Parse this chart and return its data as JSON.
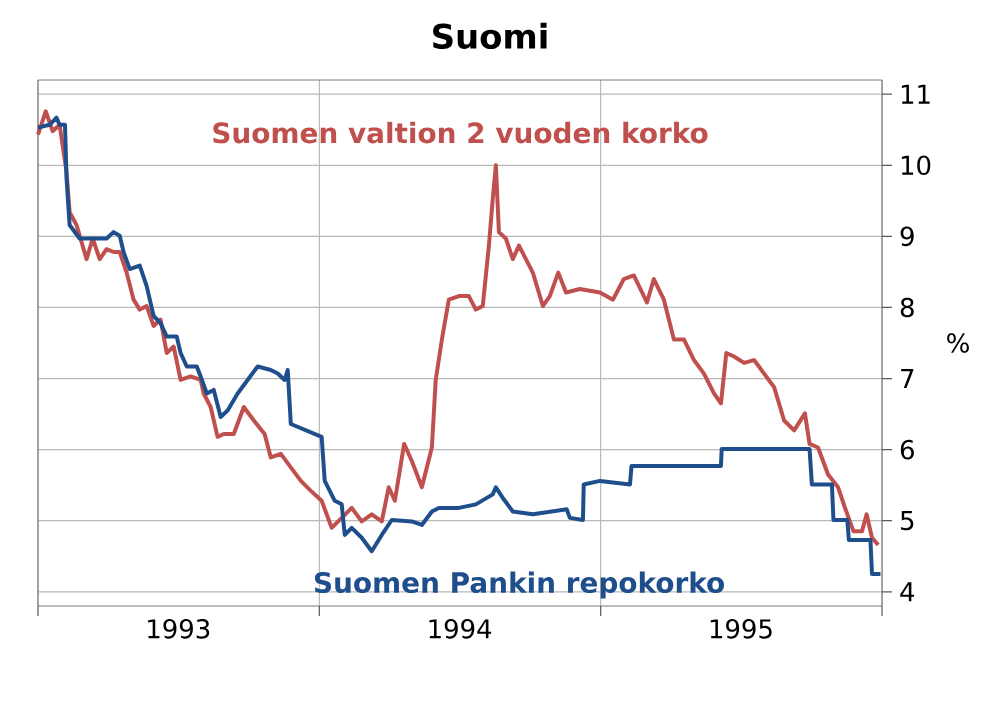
{
  "chart_data": {
    "type": "line",
    "title": "Suomi",
    "ylabel": "%",
    "xlim": [
      "1993-01-01",
      "1996-01-01"
    ],
    "ylim": [
      3.8,
      11.2
    ],
    "yticks": [
      4,
      5,
      6,
      7,
      8,
      9,
      10,
      11
    ],
    "xticks": [
      {
        "value": "1993-01-01",
        "label": null
      },
      {
        "value": "1993-07-02",
        "label": "1993"
      },
      {
        "value": "1994-01-01",
        "label": null
      },
      {
        "value": "1994-07-02",
        "label": "1994"
      },
      {
        "value": "1995-01-01",
        "label": null
      },
      {
        "value": "1995-07-02",
        "label": "1995"
      },
      {
        "value": "1996-01-01",
        "label": null
      }
    ],
    "grid": true,
    "series": [
      {
        "name": "Suomen valtion 2 vuoden korko",
        "color": "#c0504d",
        "x": [
          "1993-01-01",
          "1993-01-11",
          "1993-01-20",
          "1993-01-29",
          "1993-02-07",
          "1993-02-11",
          "1993-02-20",
          "1993-03-05",
          "1993-03-13",
          "1993-03-22",
          "1993-03-31",
          "1993-04-09",
          "1993-04-17",
          "1993-04-26",
          "1993-05-05",
          "1993-05-13",
          "1993-05-22",
          "1993-05-31",
          "1993-06-09",
          "1993-06-17",
          "1993-06-26",
          "1993-07-05",
          "1993-07-18",
          "1993-07-31",
          "1993-08-04",
          "1993-08-13",
          "1993-08-22",
          "1993-08-30",
          "1993-09-12",
          "1993-09-25",
          "1993-10-08",
          "1993-10-22",
          "1993-10-30",
          "1993-11-12",
          "1993-11-25",
          "1993-12-08",
          "1993-12-21",
          "1994-01-04",
          "1994-01-17",
          "1994-01-30",
          "1994-02-12",
          "1994-02-25",
          "1994-03-10",
          "1994-03-23",
          "1994-04-01",
          "1994-04-09",
          "1994-04-21",
          "1994-05-01",
          "1994-05-14",
          "1994-05-27",
          "1994-06-01",
          "1994-06-09",
          "1994-06-18",
          "1994-07-01",
          "1994-07-14",
          "1994-07-23",
          "1994-08-01",
          "1994-08-09",
          "1994-08-14",
          "1994-08-18",
          "1994-08-22",
          "1994-08-31",
          "1994-09-09",
          "1994-09-17",
          "1994-09-26",
          "1994-10-05",
          "1994-10-18",
          "1994-10-27",
          "1994-11-07",
          "1994-11-17",
          "1994-12-05",
          "1994-12-31",
          "1995-01-17",
          "1995-01-31",
          "1995-02-13",
          "1995-03-02",
          "1995-03-11",
          "1995-03-24",
          "1995-04-06",
          "1995-04-19",
          "1995-05-02",
          "1995-05-15",
          "1995-05-28",
          "1995-06-06",
          "1995-06-13",
          "1995-06-23",
          "1995-07-06",
          "1995-07-19",
          "1995-08-01",
          "1995-08-14",
          "1995-08-27",
          "1995-09-09",
          "1995-09-23",
          "1995-09-29",
          "1995-10-10",
          "1995-10-23",
          "1995-11-05",
          "1995-11-14",
          "1995-11-25",
          "1995-12-06",
          "1995-12-12",
          "1995-12-19",
          "1995-12-27"
        ],
        "values": [
          10.43,
          10.76,
          10.48,
          10.57,
          9.91,
          9.34,
          9.16,
          8.68,
          8.97,
          8.68,
          8.82,
          8.78,
          8.78,
          8.49,
          8.11,
          7.97,
          8.02,
          7.74,
          7.83,
          7.36,
          7.45,
          6.98,
          7.03,
          6.98,
          6.79,
          6.6,
          6.18,
          6.22,
          6.22,
          6.6,
          6.41,
          6.22,
          5.89,
          5.94,
          5.75,
          5.56,
          5.42,
          5.28,
          4.9,
          5.04,
          5.18,
          4.99,
          5.09,
          4.99,
          5.47,
          5.28,
          6.08,
          5.84,
          5.47,
          6.03,
          6.98,
          7.55,
          8.11,
          8.16,
          8.16,
          7.97,
          8.02,
          8.87,
          9.53,
          10.0,
          9.06,
          8.97,
          8.68,
          8.87,
          8.68,
          8.49,
          8.02,
          8.16,
          8.49,
          8.21,
          8.26,
          8.21,
          8.11,
          8.4,
          8.45,
          8.07,
          8.4,
          8.11,
          7.55,
          7.55,
          7.26,
          7.07,
          6.79,
          6.65,
          7.36,
          7.31,
          7.22,
          7.26,
          7.07,
          6.88,
          6.41,
          6.27,
          6.51,
          6.08,
          6.03,
          5.65,
          5.47,
          5.18,
          4.85,
          4.85,
          5.09,
          4.76,
          4.66
        ]
      },
      {
        "name": "Suomen Pankin repokorko",
        "color": "#1f4e8c",
        "x": [
          "1993-01-01",
          "1993-01-16",
          "1993-01-25",
          "1993-01-29",
          "1993-02-05",
          "1993-02-07",
          "1993-02-11",
          "1993-02-24",
          "1993-03-31",
          "1993-04-09",
          "1993-04-17",
          "1993-04-22",
          "1993-04-30",
          "1993-05-13",
          "1993-05-22",
          "1993-05-31",
          "1993-06-09",
          "1993-06-17",
          "1993-06-30",
          "1993-07-05",
          "1993-07-13",
          "1993-07-26",
          "1993-07-31",
          "1993-08-08",
          "1993-08-17",
          "1993-08-26",
          "1993-09-04",
          "1993-09-17",
          "1993-09-30",
          "1993-10-13",
          "1993-10-30",
          "1993-11-08",
          "1993-11-17",
          "1993-11-21",
          "1993-11-25",
          "1994-01-04",
          "1994-01-08",
          "1994-01-21",
          "1994-01-30",
          "1994-02-03",
          "1994-02-12",
          "1994-02-25",
          "1994-03-10",
          "1994-03-23",
          "1994-04-05",
          "1994-05-01",
          "1994-05-14",
          "1994-05-27",
          "1994-06-05",
          "1994-07-01",
          "1994-07-23",
          "1994-08-14",
          "1994-08-18",
          "1994-08-27",
          "1994-09-09",
          "1994-10-05",
          "1994-11-18",
          "1994-11-22",
          "1994-12-09",
          "1994-12-10",
          "1994-12-31",
          "1995-02-08",
          "1995-02-10",
          "1995-06-06",
          "1995-06-07",
          "1995-09-29",
          "1995-10-02",
          "1995-10-28",
          "1995-10-30",
          "1995-11-17",
          "1995-11-19",
          "1995-12-17",
          "1995-12-19",
          "1995-12-30"
        ],
        "values": [
          10.53,
          10.57,
          10.67,
          10.57,
          10.57,
          9.82,
          9.16,
          8.97,
          8.97,
          9.06,
          9.01,
          8.78,
          8.54,
          8.59,
          8.3,
          7.88,
          7.78,
          7.59,
          7.59,
          7.36,
          7.17,
          7.17,
          7.03,
          6.79,
          6.84,
          6.46,
          6.55,
          6.79,
          6.98,
          7.17,
          7.12,
          7.07,
          6.98,
          7.12,
          6.36,
          6.18,
          5.56,
          5.28,
          5.23,
          4.8,
          4.9,
          4.76,
          4.57,
          4.8,
          5.01,
          4.99,
          4.94,
          5.13,
          5.18,
          5.18,
          5.23,
          5.37,
          5.47,
          5.32,
          5.13,
          5.09,
          5.16,
          5.04,
          5.01,
          5.51,
          5.56,
          5.51,
          5.77,
          5.77,
          6.01,
          6.01,
          5.51,
          5.51,
          5.01,
          5.01,
          4.73,
          4.73,
          4.25,
          4.25
        ]
      }
    ]
  }
}
